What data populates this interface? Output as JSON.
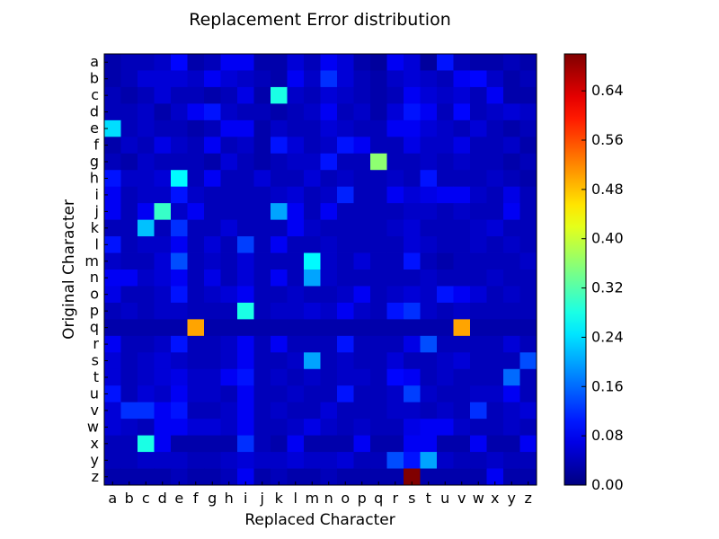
{
  "chart_data": {
    "type": "heatmap",
    "title": "Replacement Error distribution",
    "xlabel": "Replaced Character",
    "ylabel": "Original Character",
    "x_categories": [
      "a",
      "b",
      "c",
      "d",
      "e",
      "f",
      "g",
      "h",
      "i",
      "j",
      "k",
      "l",
      "m",
      "n",
      "o",
      "p",
      "q",
      "r",
      "s",
      "t",
      "u",
      "v",
      "w",
      "x",
      "y",
      "z"
    ],
    "y_categories": [
      "a",
      "b",
      "c",
      "d",
      "e",
      "f",
      "g",
      "h",
      "i",
      "j",
      "k",
      "l",
      "m",
      "n",
      "o",
      "p",
      "q",
      "r",
      "s",
      "t",
      "u",
      "v",
      "w",
      "x",
      "y",
      "z"
    ],
    "colormap": "jet",
    "vmin": 0.0,
    "vmax": 0.7,
    "colorbar_ticks": [
      "0.00",
      "0.08",
      "0.16",
      "0.24",
      "0.32",
      "0.40",
      "0.48",
      "0.56",
      "0.64"
    ],
    "values": [
      [
        0.03,
        0.04,
        0.04,
        0.05,
        0.09,
        0.03,
        0.04,
        0.08,
        0.08,
        0.03,
        0.03,
        0.06,
        0.04,
        0.08,
        0.06,
        0.03,
        0.02,
        0.08,
        0.06,
        0.02,
        0.1,
        0.04,
        0.03,
        0.03,
        0.04,
        0.03
      ],
      [
        0.03,
        0.04,
        0.06,
        0.06,
        0.06,
        0.05,
        0.08,
        0.06,
        0.05,
        0.04,
        0.03,
        0.08,
        0.05,
        0.12,
        0.06,
        0.04,
        0.03,
        0.05,
        0.06,
        0.05,
        0.04,
        0.08,
        0.09,
        0.05,
        0.03,
        0.04
      ],
      [
        0.04,
        0.03,
        0.04,
        0.06,
        0.04,
        0.04,
        0.03,
        0.04,
        0.07,
        0.03,
        0.28,
        0.05,
        0.04,
        0.06,
        0.05,
        0.04,
        0.03,
        0.04,
        0.08,
        0.06,
        0.05,
        0.06,
        0.04,
        0.08,
        0.03,
        0.03
      ],
      [
        0.04,
        0.04,
        0.05,
        0.03,
        0.05,
        0.08,
        0.1,
        0.05,
        0.04,
        0.04,
        0.03,
        0.04,
        0.05,
        0.08,
        0.04,
        0.05,
        0.03,
        0.06,
        0.1,
        0.08,
        0.04,
        0.09,
        0.04,
        0.05,
        0.06,
        0.05
      ],
      [
        0.24,
        0.04,
        0.05,
        0.04,
        0.04,
        0.03,
        0.04,
        0.08,
        0.08,
        0.03,
        0.05,
        0.04,
        0.04,
        0.06,
        0.05,
        0.04,
        0.04,
        0.08,
        0.08,
        0.06,
        0.05,
        0.04,
        0.06,
        0.04,
        0.03,
        0.04
      ],
      [
        0.03,
        0.05,
        0.04,
        0.07,
        0.05,
        0.04,
        0.08,
        0.04,
        0.05,
        0.03,
        0.1,
        0.06,
        0.04,
        0.05,
        0.1,
        0.08,
        0.04,
        0.04,
        0.07,
        0.05,
        0.05,
        0.07,
        0.04,
        0.04,
        0.05,
        0.03
      ],
      [
        0.04,
        0.03,
        0.05,
        0.04,
        0.04,
        0.04,
        0.03,
        0.06,
        0.04,
        0.03,
        0.04,
        0.05,
        0.05,
        0.1,
        0.04,
        0.04,
        0.36,
        0.04,
        0.04,
        0.05,
        0.04,
        0.05,
        0.04,
        0.04,
        0.03,
        0.04
      ],
      [
        0.1,
        0.05,
        0.05,
        0.06,
        0.26,
        0.04,
        0.08,
        0.04,
        0.04,
        0.06,
        0.04,
        0.04,
        0.06,
        0.04,
        0.05,
        0.04,
        0.04,
        0.05,
        0.04,
        0.1,
        0.04,
        0.04,
        0.04,
        0.05,
        0.04,
        0.03
      ],
      [
        0.08,
        0.04,
        0.05,
        0.05,
        0.1,
        0.05,
        0.04,
        0.04,
        0.04,
        0.04,
        0.05,
        0.06,
        0.04,
        0.05,
        0.11,
        0.04,
        0.04,
        0.08,
        0.06,
        0.07,
        0.08,
        0.08,
        0.05,
        0.04,
        0.07,
        0.04
      ],
      [
        0.08,
        0.04,
        0.08,
        0.3,
        0.05,
        0.08,
        0.04,
        0.04,
        0.04,
        0.04,
        0.2,
        0.08,
        0.04,
        0.08,
        0.04,
        0.04,
        0.04,
        0.04,
        0.05,
        0.05,
        0.04,
        0.05,
        0.04,
        0.04,
        0.08,
        0.04
      ],
      [
        0.04,
        0.04,
        0.22,
        0.04,
        0.12,
        0.04,
        0.04,
        0.06,
        0.04,
        0.04,
        0.04,
        0.08,
        0.05,
        0.04,
        0.04,
        0.04,
        0.04,
        0.05,
        0.06,
        0.04,
        0.04,
        0.04,
        0.05,
        0.06,
        0.04,
        0.04
      ],
      [
        0.1,
        0.04,
        0.05,
        0.05,
        0.08,
        0.04,
        0.06,
        0.04,
        0.13,
        0.04,
        0.08,
        0.04,
        0.04,
        0.05,
        0.04,
        0.04,
        0.04,
        0.04,
        0.06,
        0.05,
        0.04,
        0.04,
        0.05,
        0.04,
        0.05,
        0.04
      ],
      [
        0.05,
        0.04,
        0.04,
        0.06,
        0.14,
        0.04,
        0.05,
        0.04,
        0.06,
        0.04,
        0.04,
        0.04,
        0.26,
        0.05,
        0.04,
        0.06,
        0.04,
        0.04,
        0.1,
        0.04,
        0.03,
        0.04,
        0.04,
        0.04,
        0.04,
        0.05
      ],
      [
        0.08,
        0.08,
        0.05,
        0.06,
        0.08,
        0.04,
        0.07,
        0.04,
        0.06,
        0.04,
        0.08,
        0.04,
        0.2,
        0.05,
        0.04,
        0.04,
        0.04,
        0.04,
        0.04,
        0.05,
        0.04,
        0.04,
        0.04,
        0.05,
        0.04,
        0.04
      ],
      [
        0.07,
        0.04,
        0.04,
        0.05,
        0.1,
        0.04,
        0.05,
        0.06,
        0.08,
        0.04,
        0.04,
        0.05,
        0.04,
        0.04,
        0.05,
        0.08,
        0.04,
        0.05,
        0.06,
        0.05,
        0.1,
        0.08,
        0.06,
        0.04,
        0.05,
        0.04
      ],
      [
        0.04,
        0.05,
        0.04,
        0.05,
        0.05,
        0.04,
        0.04,
        0.04,
        0.28,
        0.04,
        0.05,
        0.05,
        0.06,
        0.05,
        0.08,
        0.05,
        0.04,
        0.1,
        0.12,
        0.05,
        0.04,
        0.05,
        0.04,
        0.04,
        0.04,
        0.04
      ],
      [
        0.03,
        0.03,
        0.03,
        0.03,
        0.03,
        0.5,
        0.03,
        0.03,
        0.03,
        0.03,
        0.03,
        0.03,
        0.03,
        0.03,
        0.03,
        0.03,
        0.03,
        0.03,
        0.03,
        0.03,
        0.03,
        0.5,
        0.03,
        0.03,
        0.03,
        0.03
      ],
      [
        0.08,
        0.04,
        0.04,
        0.05,
        0.1,
        0.04,
        0.04,
        0.05,
        0.08,
        0.04,
        0.08,
        0.04,
        0.04,
        0.04,
        0.1,
        0.04,
        0.04,
        0.04,
        0.07,
        0.14,
        0.04,
        0.04,
        0.04,
        0.04,
        0.06,
        0.04
      ],
      [
        0.06,
        0.04,
        0.05,
        0.06,
        0.05,
        0.04,
        0.04,
        0.05,
        0.08,
        0.04,
        0.04,
        0.05,
        0.2,
        0.04,
        0.05,
        0.04,
        0.04,
        0.06,
        0.04,
        0.04,
        0.05,
        0.06,
        0.04,
        0.04,
        0.04,
        0.14
      ],
      [
        0.06,
        0.04,
        0.05,
        0.06,
        0.07,
        0.05,
        0.05,
        0.08,
        0.1,
        0.04,
        0.05,
        0.04,
        0.05,
        0.04,
        0.05,
        0.05,
        0.04,
        0.09,
        0.08,
        0.04,
        0.05,
        0.04,
        0.04,
        0.04,
        0.16,
        0.04
      ],
      [
        0.1,
        0.04,
        0.06,
        0.05,
        0.08,
        0.05,
        0.05,
        0.04,
        0.08,
        0.04,
        0.04,
        0.05,
        0.04,
        0.04,
        0.1,
        0.04,
        0.04,
        0.05,
        0.13,
        0.05,
        0.04,
        0.04,
        0.05,
        0.05,
        0.08,
        0.04
      ],
      [
        0.06,
        0.12,
        0.12,
        0.08,
        0.1,
        0.04,
        0.04,
        0.05,
        0.08,
        0.04,
        0.05,
        0.04,
        0.04,
        0.06,
        0.04,
        0.04,
        0.04,
        0.05,
        0.05,
        0.04,
        0.05,
        0.04,
        0.12,
        0.04,
        0.05,
        0.06
      ],
      [
        0.06,
        0.05,
        0.04,
        0.08,
        0.08,
        0.06,
        0.06,
        0.05,
        0.08,
        0.04,
        0.04,
        0.05,
        0.07,
        0.05,
        0.04,
        0.05,
        0.04,
        0.04,
        0.07,
        0.08,
        0.08,
        0.05,
        0.04,
        0.04,
        0.05,
        0.04
      ],
      [
        0.04,
        0.04,
        0.28,
        0.08,
        0.03,
        0.03,
        0.03,
        0.03,
        0.12,
        0.04,
        0.03,
        0.08,
        0.03,
        0.03,
        0.03,
        0.08,
        0.03,
        0.03,
        0.08,
        0.08,
        0.03,
        0.03,
        0.08,
        0.03,
        0.03,
        0.08
      ],
      [
        0.04,
        0.04,
        0.05,
        0.05,
        0.05,
        0.04,
        0.04,
        0.05,
        0.06,
        0.05,
        0.05,
        0.06,
        0.05,
        0.05,
        0.06,
        0.04,
        0.04,
        0.14,
        0.1,
        0.2,
        0.05,
        0.04,
        0.04,
        0.05,
        0.04,
        0.04
      ],
      [
        0.03,
        0.03,
        0.03,
        0.03,
        0.04,
        0.03,
        0.03,
        0.04,
        0.08,
        0.03,
        0.04,
        0.03,
        0.03,
        0.04,
        0.03,
        0.03,
        0.03,
        0.03,
        0.7,
        0.03,
        0.03,
        0.03,
        0.03,
        0.08,
        0.03,
        0.03
      ]
    ]
  }
}
